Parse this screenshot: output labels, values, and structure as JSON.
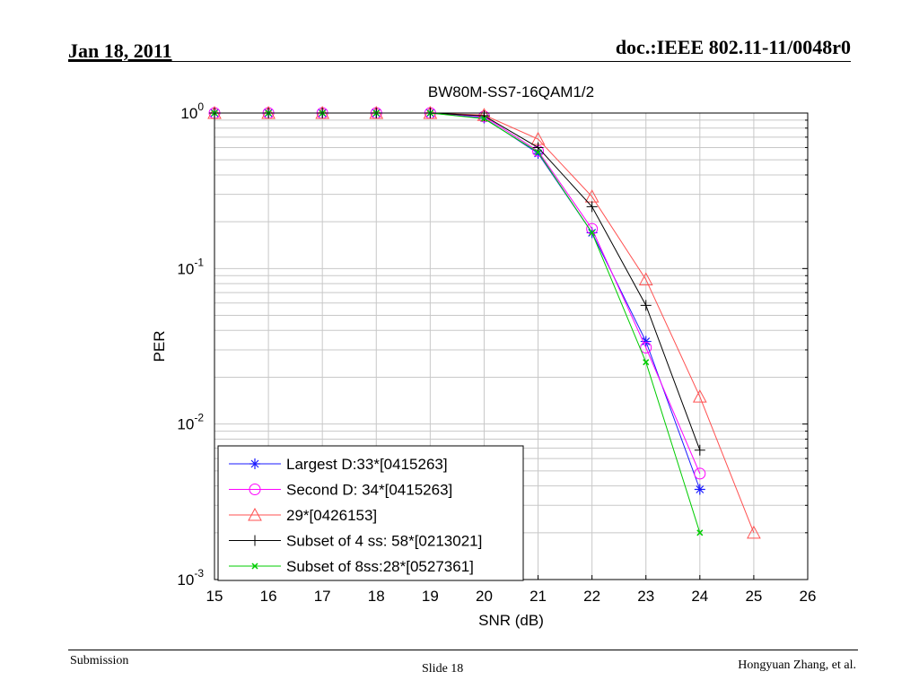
{
  "slide": {
    "date": "Jan 18, 2011",
    "doc_id": "doc.:IEEE 802.11-11/0048r0",
    "footer_left": "Submission",
    "footer_center": "Slide 18",
    "footer_right": "Hongyuan Zhang, et al."
  },
  "colors": {
    "blue": "#1a1aff",
    "magenta": "#ff00ff",
    "red": "#ff5050",
    "black": "#000000",
    "green": "#00cc00",
    "grid": "#c8c8c8"
  },
  "chart_data": {
    "type": "line",
    "title": "BW80M-SS7-16QAM1/2",
    "xlabel": "SNR (dB)",
    "ylabel": "PER",
    "xlim": [
      15,
      26
    ],
    "ylim": [
      0.001,
      1
    ],
    "yscale": "log",
    "xticks": [
      "15",
      "16",
      "17",
      "18",
      "19",
      "20",
      "21",
      "22",
      "23",
      "24",
      "25",
      "26"
    ],
    "yticks": [
      {
        "base": "10",
        "exp": "0",
        "value": 1
      },
      {
        "base": "10",
        "exp": "-1",
        "value": 0.1
      },
      {
        "base": "10",
        "exp": "-2",
        "value": 0.01
      },
      {
        "base": "10",
        "exp": "-3",
        "value": 0.001
      }
    ],
    "grid": true,
    "legend_position": "bottom-left",
    "series": [
      {
        "name": "Largest D:33*[0415263]",
        "color": "#1a1aff",
        "marker": "star",
        "x": [
          15,
          16,
          17,
          18,
          19,
          20,
          21,
          22,
          23,
          24
        ],
        "y": [
          1,
          1,
          1,
          1,
          1,
          0.93,
          0.55,
          0.17,
          0.034,
          0.0038
        ]
      },
      {
        "name": "Second D: 34*[0415263]",
        "color": "#ff00ff",
        "marker": "circle",
        "x": [
          15,
          16,
          17,
          18,
          19,
          20,
          21,
          22,
          23,
          24
        ],
        "y": [
          1,
          1,
          1,
          1,
          1,
          0.95,
          0.57,
          0.18,
          0.031,
          0.0048
        ]
      },
      {
        "name": "29*[0426153]",
        "color": "#ff5050",
        "marker": "triangle",
        "x": [
          15,
          16,
          17,
          18,
          19,
          20,
          21,
          22,
          23,
          24,
          25
        ],
        "y": [
          1,
          1,
          1,
          1,
          1,
          0.97,
          0.68,
          0.29,
          0.085,
          0.015,
          0.002
        ]
      },
      {
        "name": "Subset of 4 ss: 58*[0213021]",
        "color": "#000000",
        "marker": "plus",
        "x": [
          15,
          16,
          17,
          18,
          19,
          20,
          21,
          22,
          23,
          24
        ],
        "y": [
          1,
          1,
          1,
          1,
          1,
          0.96,
          0.6,
          0.25,
          0.058,
          0.0068
        ]
      },
      {
        "name": "Subset of 8ss:28*[0527361]",
        "color": "#00cc00",
        "marker": "x",
        "x": [
          15,
          16,
          17,
          18,
          19,
          20,
          21,
          22,
          23,
          24
        ],
        "y": [
          1,
          1,
          1,
          1,
          1,
          0.92,
          0.56,
          0.17,
          0.025,
          0.002
        ]
      }
    ]
  }
}
